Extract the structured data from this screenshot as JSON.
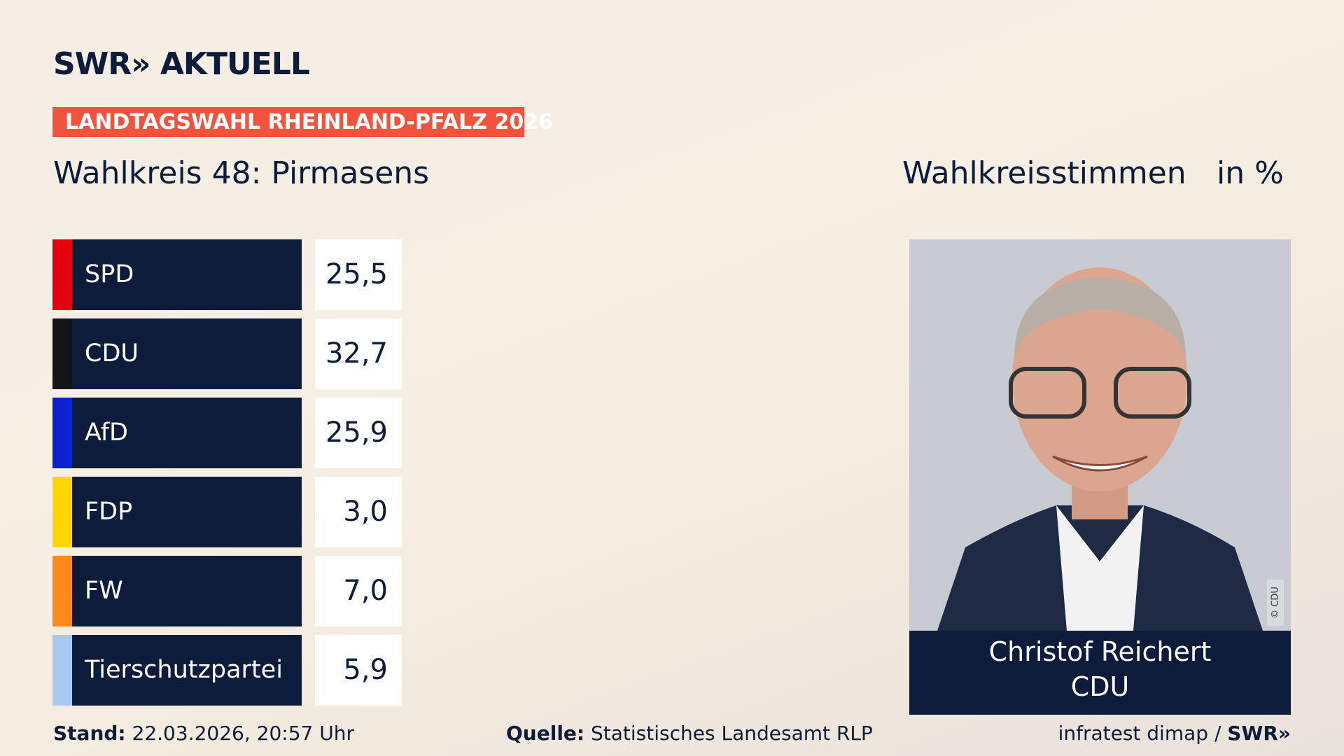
{
  "header": {
    "logo": "SWR» AKTUELL",
    "banner": "LANDTAGSWAHL RHEINLAND-PFALZ 2026",
    "subtitle": "Wahlkreis 48: Pirmasens",
    "measure": "Wahlkreisstimmen",
    "unit": "in %"
  },
  "table": {
    "rows": [
      {
        "party": "SPD",
        "value": "25,5",
        "color": "#e3000f"
      },
      {
        "party": "CDU",
        "value": "32,7",
        "color": "#151515"
      },
      {
        "party": "AfD",
        "value": "25,9",
        "color": "#0a22d0"
      },
      {
        "party": "FDP",
        "value": "3,0",
        "color": "#ffd600"
      },
      {
        "party": "FW",
        "value": "7,0",
        "color": "#ff8a1c"
      },
      {
        "party": "Tierschutzpartei",
        "value": "5,9",
        "color": "#a9c8ef"
      }
    ]
  },
  "candidate": {
    "name": "Christof Reichert",
    "party": "CDU",
    "credit": "© CDU"
  },
  "footer": {
    "stand_label": "Stand:",
    "stand": "22.03.2026, 20:57 Uhr",
    "source_label": "Quelle:",
    "source": "Statistisches Landesamt RLP",
    "credit": "infratest dimap /",
    "brand": "SWR»"
  }
}
